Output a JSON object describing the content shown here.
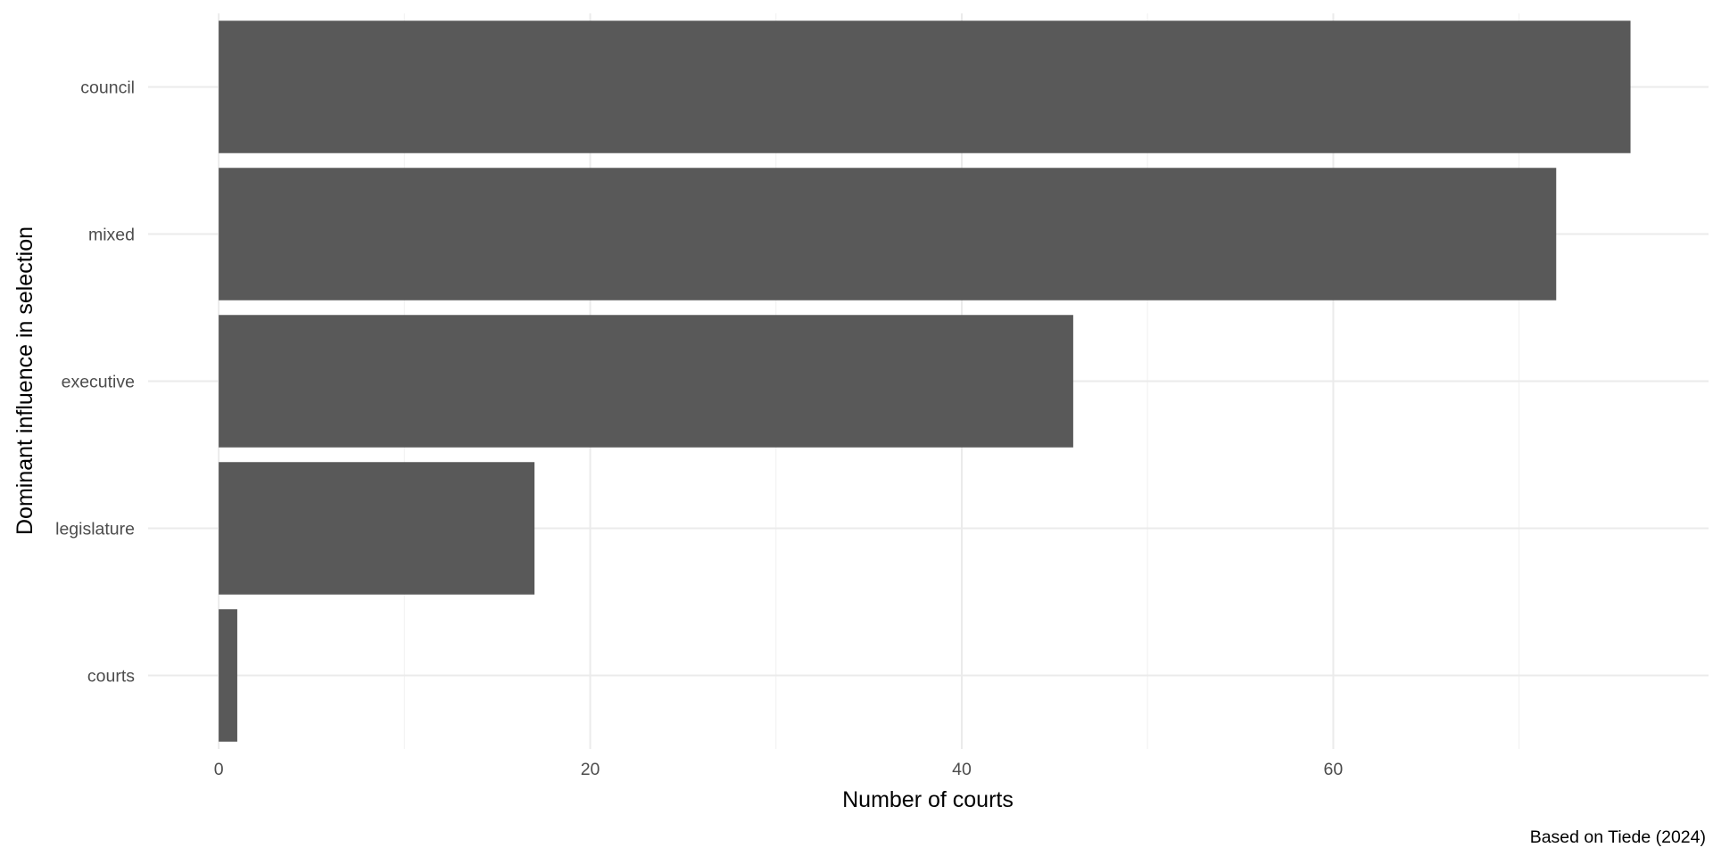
{
  "chart_data": {
    "type": "bar",
    "orientation": "horizontal",
    "categories": [
      "council",
      "mixed",
      "executive",
      "legislature",
      "courts"
    ],
    "values": [
      76,
      72,
      46,
      17,
      1
    ],
    "xlabel": "Number of courts",
    "ylabel": "Dominant influence in selection",
    "caption": "Based on Tiede (2024)",
    "xlim": [
      -3.8,
      80.2
    ],
    "xticks": [
      0,
      20,
      40,
      60
    ],
    "xtick_labels": [
      "0",
      "20",
      "40",
      "60"
    ],
    "grid": true,
    "colors": {
      "bar": "#595959",
      "grid_major": "#ebebeb",
      "grid_minor": "#f2f2f2",
      "background": "#ffffff"
    }
  }
}
